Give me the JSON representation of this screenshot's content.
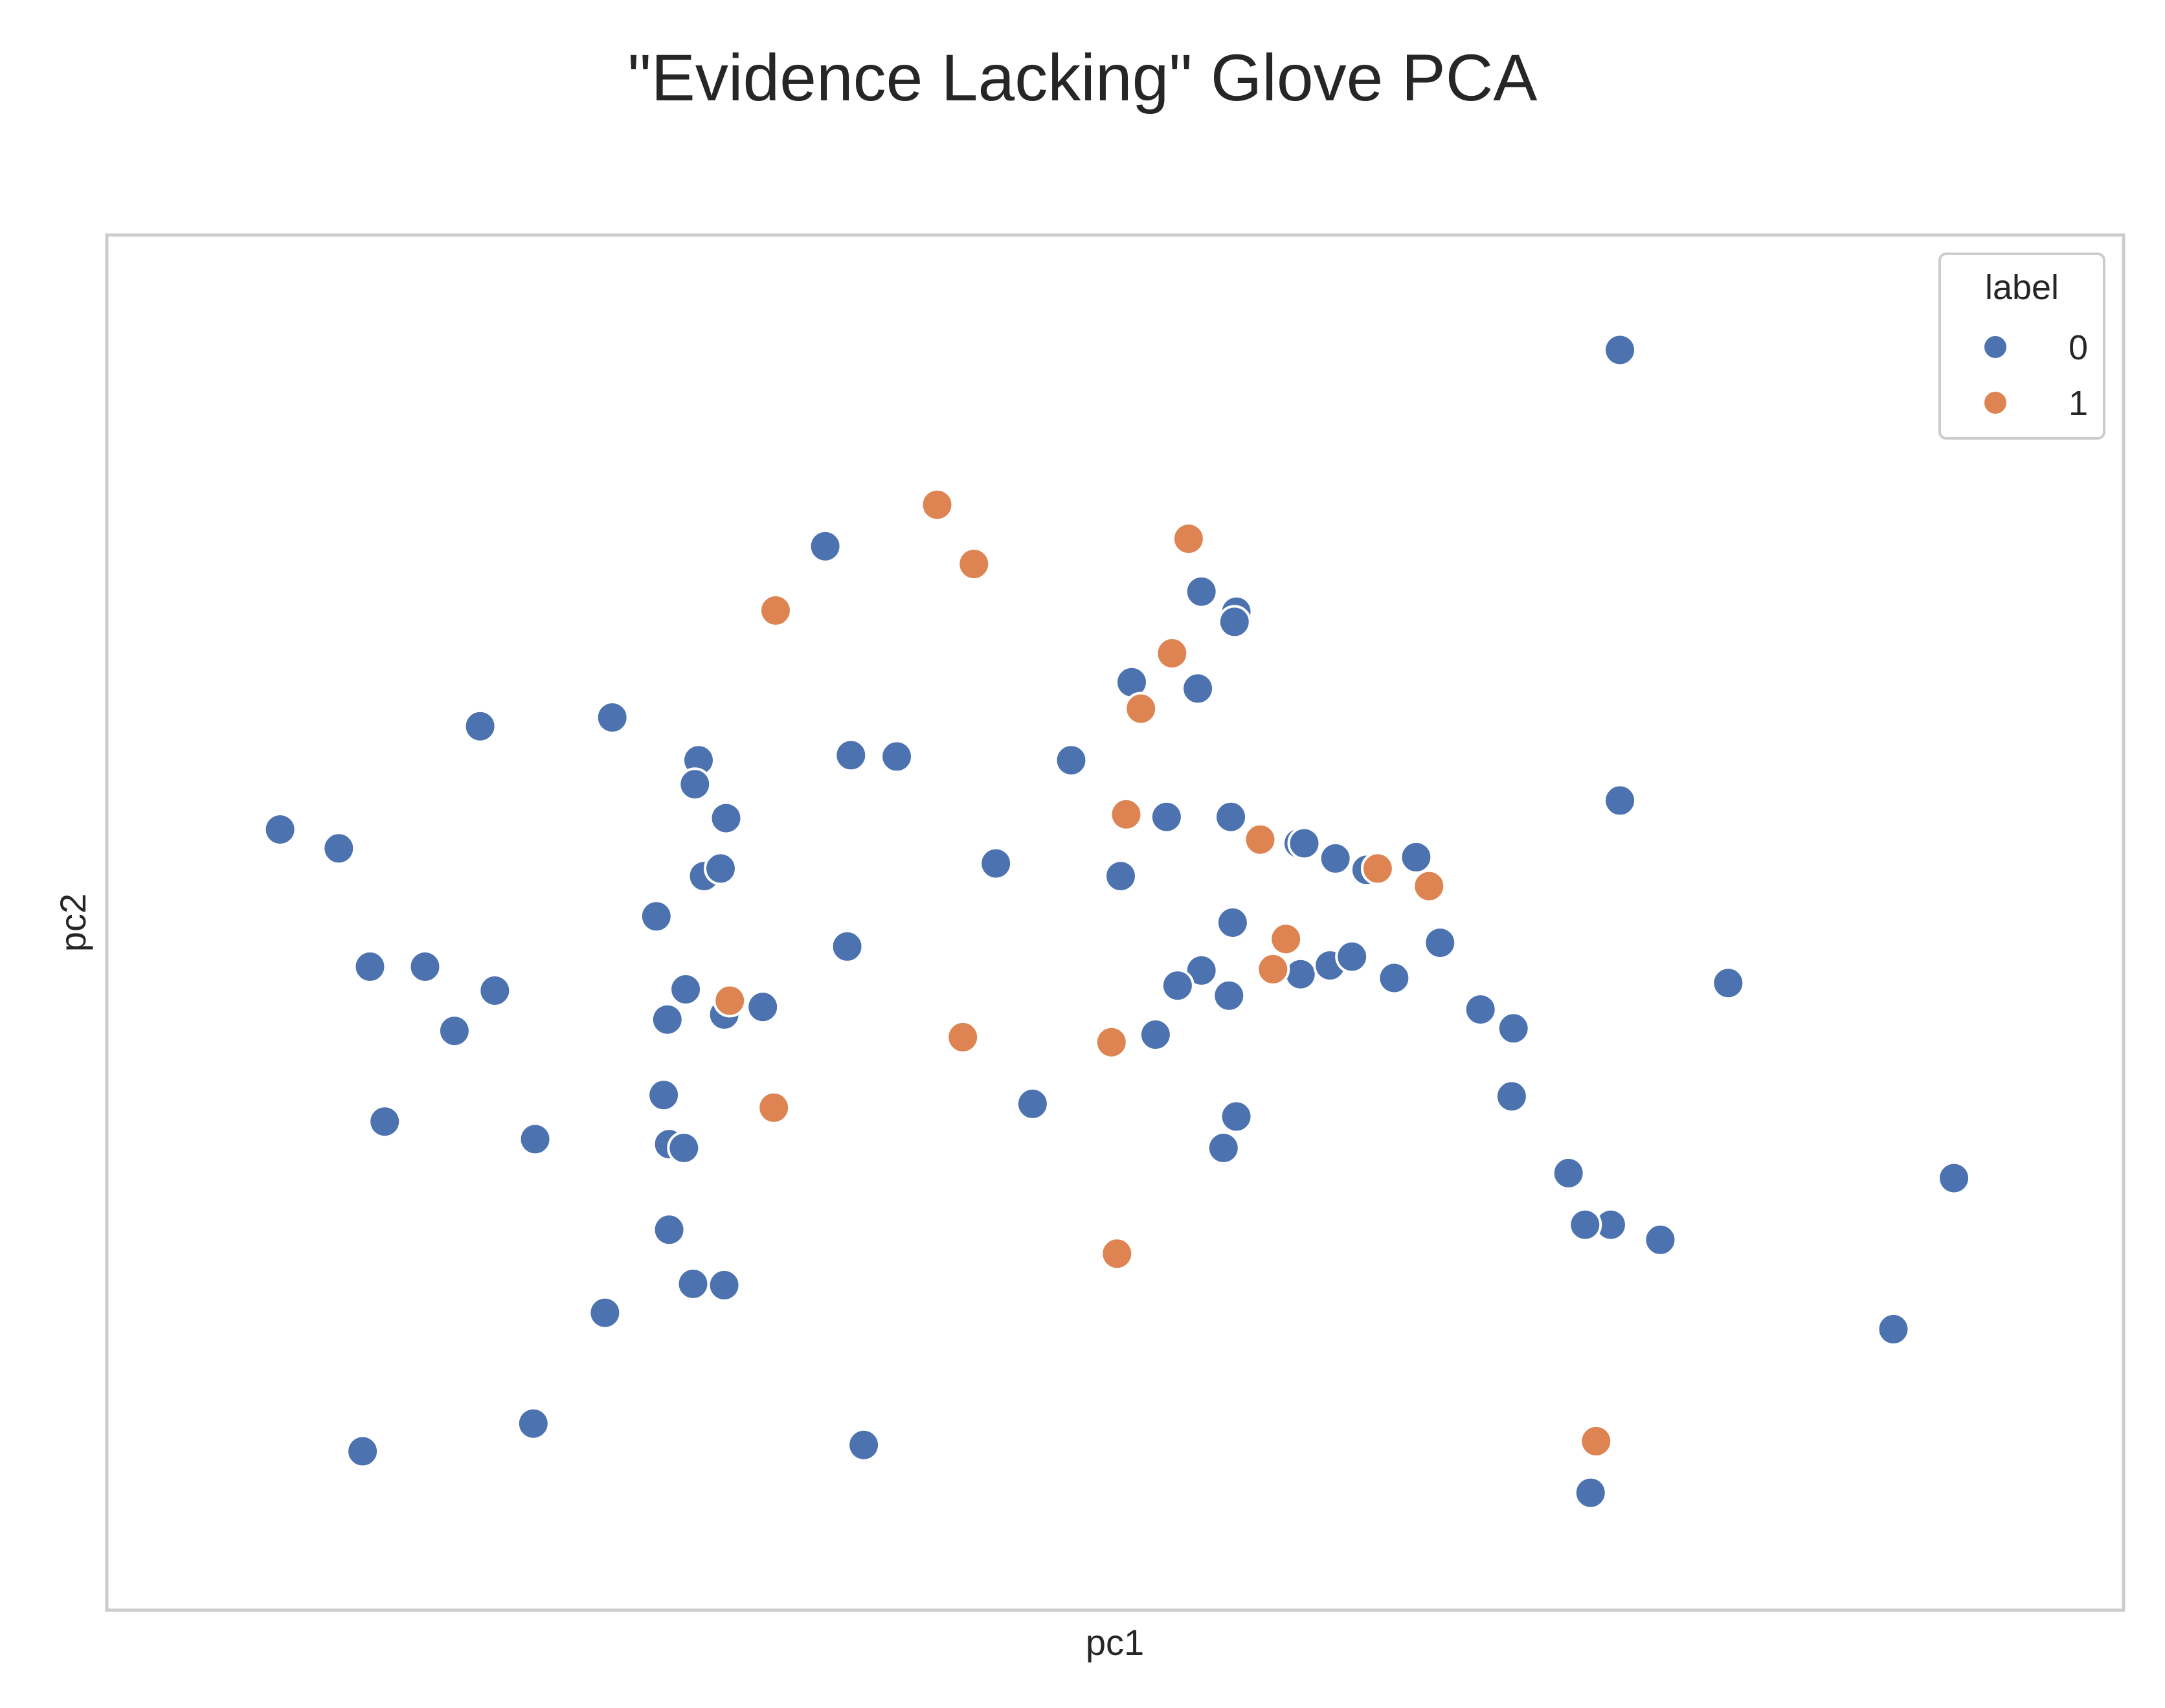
{
  "chart_data": {
    "type": "scatter",
    "title": "\"Evidence Lacking\" Glove PCA",
    "xlabel": "pc1",
    "ylabel": "pc2",
    "xlim": [
      0,
      1000
    ],
    "ylim": [
      0,
      1000
    ],
    "grid": false,
    "ticks_visible": false,
    "legend": {
      "title": "label",
      "position": "top-right",
      "entries": [
        {
          "label": "0",
          "color": "#4c72b0"
        },
        {
          "label": "1",
          "color": "#dd8452"
        }
      ]
    },
    "series": [
      {
        "name": "0",
        "color": "#4c72b0",
        "points": [
          {
            "x": 775,
            "y": 955
          },
          {
            "x": 342,
            "y": 799
          },
          {
            "x": 547,
            "y": 763
          },
          {
            "x": 566,
            "y": 747
          },
          {
            "x": 565,
            "y": 739
          },
          {
            "x": 545,
            "y": 686
          },
          {
            "x": 509,
            "y": 691
          },
          {
            "x": 154,
            "y": 656
          },
          {
            "x": 226,
            "y": 663
          },
          {
            "x": 356,
            "y": 633
          },
          {
            "x": 381,
            "y": 632
          },
          {
            "x": 273,
            "y": 629
          },
          {
            "x": 271,
            "y": 610
          },
          {
            "x": 288,
            "y": 583
          },
          {
            "x": 476,
            "y": 629
          },
          {
            "x": 775,
            "y": 597
          },
          {
            "x": 45,
            "y": 574
          },
          {
            "x": 77,
            "y": 559
          },
          {
            "x": 528,
            "y": 584
          },
          {
            "x": 563,
            "y": 584
          },
          {
            "x": 600,
            "y": 563
          },
          {
            "x": 603,
            "y": 563
          },
          {
            "x": 620,
            "y": 551
          },
          {
            "x": 637,
            "y": 542
          },
          {
            "x": 664,
            "y": 552
          },
          {
            "x": 276,
            "y": 537
          },
          {
            "x": 285,
            "y": 543
          },
          {
            "x": 435,
            "y": 547
          },
          {
            "x": 503,
            "y": 537
          },
          {
            "x": 250,
            "y": 505
          },
          {
            "x": 564,
            "y": 500
          },
          {
            "x": 354,
            "y": 481
          },
          {
            "x": 547,
            "y": 462
          },
          {
            "x": 601,
            "y": 459
          },
          {
            "x": 617,
            "y": 466
          },
          {
            "x": 629,
            "y": 473
          },
          {
            "x": 652,
            "y": 456
          },
          {
            "x": 677,
            "y": 484
          },
          {
            "x": 94,
            "y": 465
          },
          {
            "x": 124,
            "y": 465
          },
          {
            "x": 162,
            "y": 446
          },
          {
            "x": 266,
            "y": 447
          },
          {
            "x": 256,
            "y": 423
          },
          {
            "x": 287,
            "y": 427
          },
          {
            "x": 308,
            "y": 433
          },
          {
            "x": 140,
            "y": 414
          },
          {
            "x": 534,
            "y": 450
          },
          {
            "x": 562,
            "y": 442
          },
          {
            "x": 522,
            "y": 411
          },
          {
            "x": 699,
            "y": 431
          },
          {
            "x": 717,
            "y": 416
          },
          {
            "x": 834,
            "y": 452
          },
          {
            "x": 254,
            "y": 363
          },
          {
            "x": 455,
            "y": 356
          },
          {
            "x": 566,
            "y": 346
          },
          {
            "x": 559,
            "y": 321
          },
          {
            "x": 716,
            "y": 362
          },
          {
            "x": 102,
            "y": 342
          },
          {
            "x": 184,
            "y": 328
          },
          {
            "x": 257,
            "y": 324
          },
          {
            "x": 265,
            "y": 321
          },
          {
            "x": 747,
            "y": 301
          },
          {
            "x": 770,
            "y": 260
          },
          {
            "x": 797,
            "y": 248
          },
          {
            "x": 957,
            "y": 297
          },
          {
            "x": 756,
            "y": 260
          },
          {
            "x": 257,
            "y": 256
          },
          {
            "x": 270,
            "y": 213
          },
          {
            "x": 287,
            "y": 212
          },
          {
            "x": 222,
            "y": 190
          },
          {
            "x": 924,
            "y": 177
          },
          {
            "x": 183,
            "y": 102
          },
          {
            "x": 90,
            "y": 80
          },
          {
            "x": 363,
            "y": 85
          },
          {
            "x": 759,
            "y": 47
          }
        ]
      },
      {
        "name": "1",
        "color": "#dd8452",
        "points": [
          {
            "x": 403,
            "y": 832
          },
          {
            "x": 540,
            "y": 805
          },
          {
            "x": 423,
            "y": 785
          },
          {
            "x": 315,
            "y": 748
          },
          {
            "x": 531,
            "y": 714
          },
          {
            "x": 514,
            "y": 670
          },
          {
            "x": 506,
            "y": 586
          },
          {
            "x": 579,
            "y": 566
          },
          {
            "x": 643,
            "y": 543
          },
          {
            "x": 671,
            "y": 529
          },
          {
            "x": 593,
            "y": 487
          },
          {
            "x": 586,
            "y": 463
          },
          {
            "x": 290,
            "y": 438
          },
          {
            "x": 417,
            "y": 409
          },
          {
            "x": 498,
            "y": 405
          },
          {
            "x": 314,
            "y": 353
          },
          {
            "x": 501,
            "y": 237
          },
          {
            "x": 762,
            "y": 88
          }
        ]
      }
    ]
  }
}
